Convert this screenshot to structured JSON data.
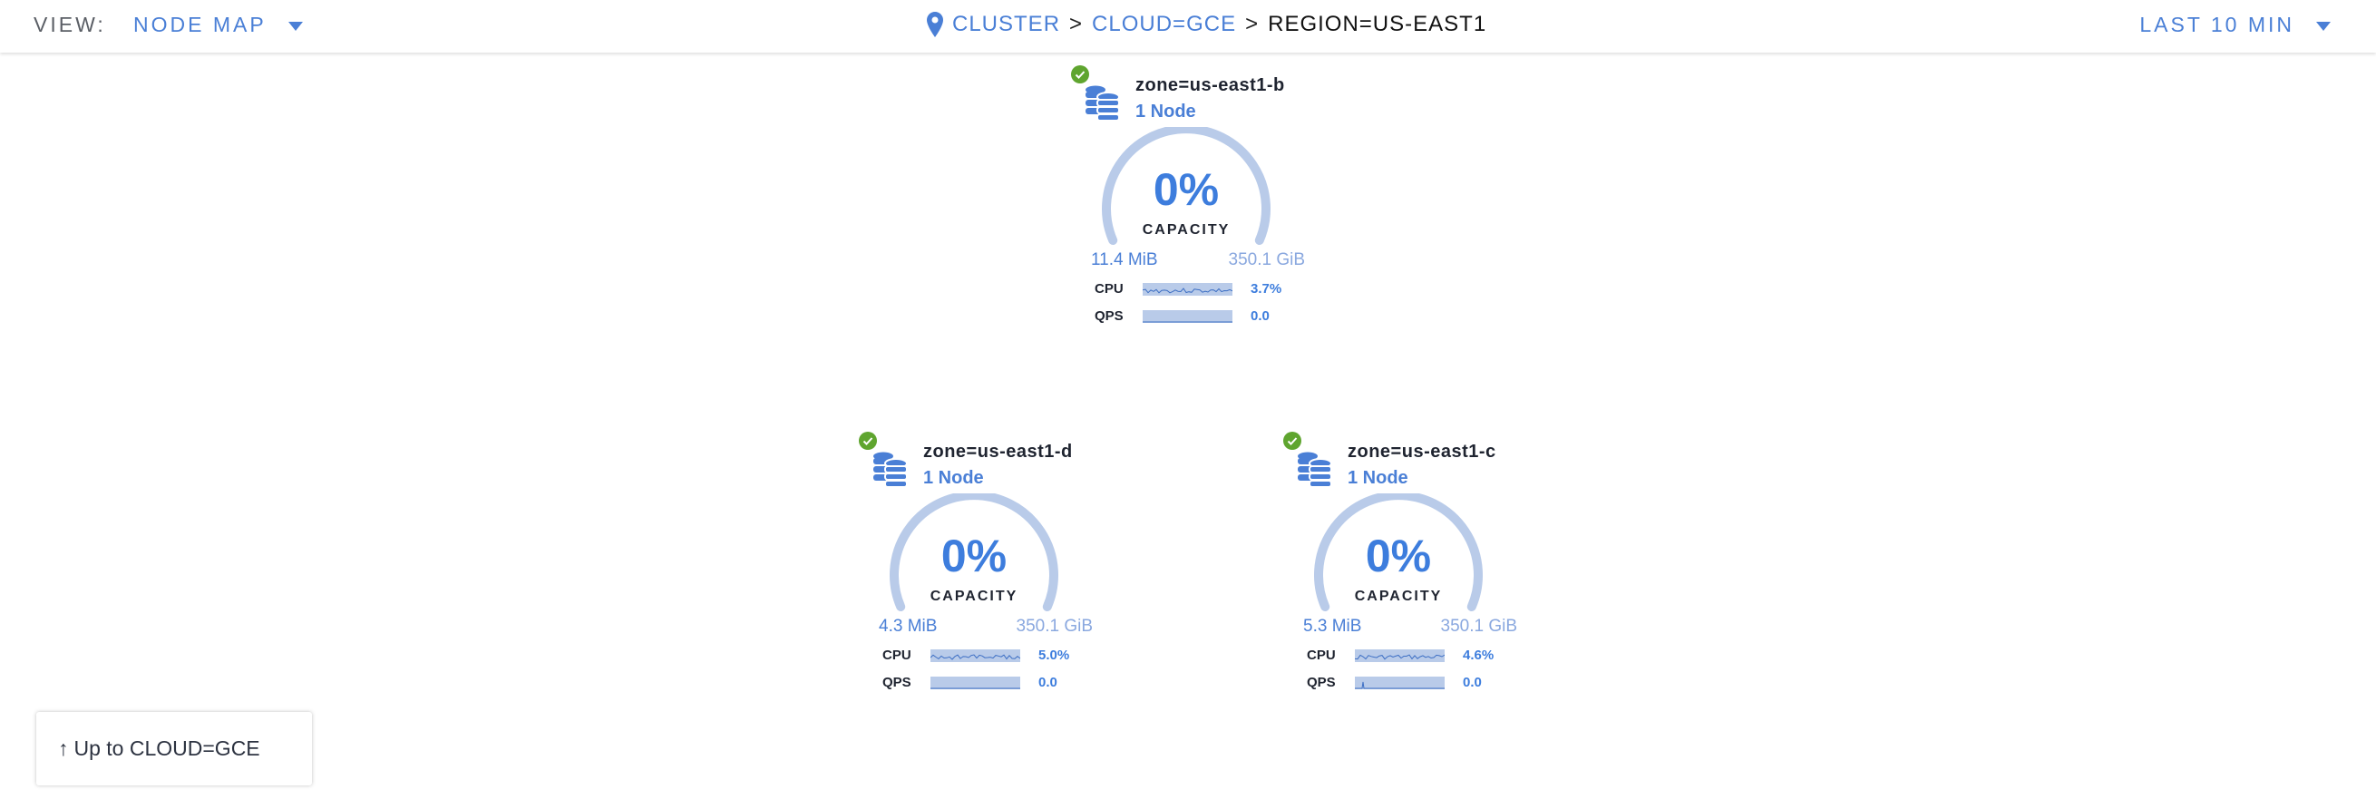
{
  "header": {
    "view_label": "VIEW:",
    "view_value": "NODE MAP",
    "breadcrumb": [
      "CLUSTER",
      "CLOUD=GCE",
      "REGION=US-EAST1"
    ],
    "breadcrumb_sep": ">",
    "time_range": "LAST 10 MIN"
  },
  "colors": {
    "accent": "#4a7fd6",
    "healthy": "#5fa52f",
    "gauge_track": "#b9cbe9"
  },
  "zones": [
    {
      "name": "zone=us-east1-b",
      "nodes": "1 Node",
      "status": "healthy",
      "capacity_pct": "0%",
      "capacity_label": "CAPACITY",
      "used": "11.4 MiB",
      "total": "350.1 GiB",
      "cpu_label": "CPU",
      "cpu": "3.7%",
      "qps_label": "QPS",
      "qps": "0.0"
    },
    {
      "name": "zone=us-east1-d",
      "nodes": "1 Node",
      "status": "healthy",
      "capacity_pct": "0%",
      "capacity_label": "CAPACITY",
      "used": "4.3 MiB",
      "total": "350.1 GiB",
      "cpu_label": "CPU",
      "cpu": "5.0%",
      "qps_label": "QPS",
      "qps": "0.0"
    },
    {
      "name": "zone=us-east1-c",
      "nodes": "1 Node",
      "status": "healthy",
      "capacity_pct": "0%",
      "capacity_label": "CAPACITY",
      "used": "5.3 MiB",
      "total": "350.1 GiB",
      "cpu_label": "CPU",
      "cpu": "4.6%",
      "qps_label": "QPS",
      "qps": "0.0"
    }
  ],
  "up_button": {
    "arrow": "🡑",
    "label": "Up to CLOUD=GCE"
  }
}
